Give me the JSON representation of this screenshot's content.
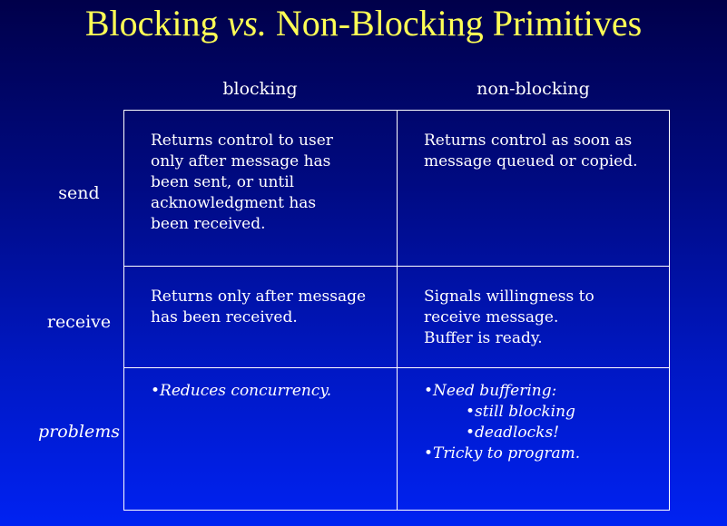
{
  "title": {
    "part1": "Blocking ",
    "vs": "vs.",
    "part2": " Non-Blocking Primitives"
  },
  "columns": {
    "blocking": "blocking",
    "nonblocking": "non-blocking"
  },
  "rows": {
    "send": "send",
    "receive": "receive",
    "problems": "problems"
  },
  "cells": {
    "send_blocking": [
      "Returns control to user",
      "only after message has",
      "been sent, or until",
      "acknowledgment has",
      "been received."
    ],
    "send_nonblocking": [
      "Returns control as soon as",
      "message queued or copied."
    ],
    "receive_blocking": [
      "Returns only after message",
      "has been received."
    ],
    "receive_nonblocking": [
      "Signals willingness to",
      "receive message.",
      "Buffer is ready."
    ],
    "problems_blocking": [
      "•Reduces concurrency."
    ],
    "problems_nonblocking": [
      "•Need buffering:",
      "•still blocking",
      "•deadlocks!",
      "•Tricky to program."
    ]
  }
}
